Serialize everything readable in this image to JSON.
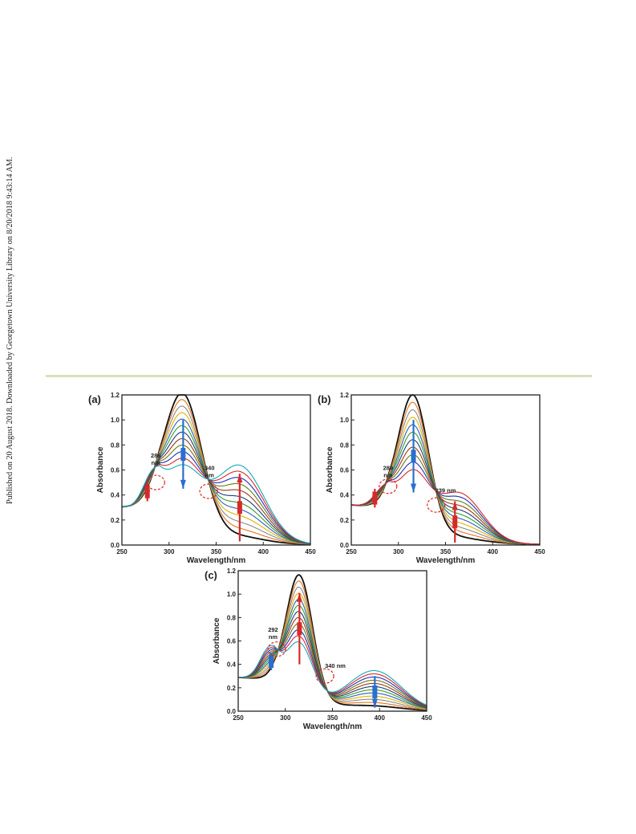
{
  "side_note": "Published on 20 August 2018. Downloaded by Georgetown University Library on 8/20/2018 9:43:14 AM.",
  "colors": {
    "palette": [
      "#111111",
      "#e8731a",
      "#8a8a8a",
      "#e3b100",
      "#2c5fb8",
      "#3a9a2c",
      "#1c3f7a",
      "#9b3a12",
      "#6a7a1a",
      "#1f2fb8",
      "#d62a2a",
      "#18a8b8",
      "#c41a9a",
      "#555555"
    ],
    "up_arrow": "#d62a2a",
    "down_arrow": "#2a6fcc",
    "isosbestic_circle": "#e02020"
  },
  "chart_data": [
    {
      "type": "line",
      "panel_label": "(a)",
      "xlabel": "Wavelength/nm",
      "ylabel": "Absorbance",
      "xlim": [
        250,
        450
      ],
      "ylim": [
        0.0,
        1.2
      ],
      "x_ticks": [
        "250",
        "300",
        "350",
        "400",
        "450"
      ],
      "y_ticks": [
        "0.0",
        "0.2",
        "0.4",
        "0.6",
        "0.8",
        "1.0",
        "1.2"
      ],
      "grid": false,
      "series_count": 12,
      "shape": {
        "base": 0.28,
        "tail_center": 290,
        "tail_width": 40,
        "peak1_center": 315,
        "peak1_width": 20,
        "peak1_max": 1.06,
        "peak1_min": 0.45,
        "peak2_center": 375,
        "peak2_width": 26,
        "peak2_min": 0.04,
        "peak2_max": 0.6,
        "shoulder_center": 282,
        "shoulder_width": 10,
        "shoulder_max": 0.2
      },
      "annotations": [
        {
          "lines": [
            "286",
            "nm"
          ],
          "x": 286,
          "y": 0.7,
          "circle_x": 286,
          "circle_y": 0.5
        },
        {
          "lines": [
            "340",
            "nm"
          ],
          "x": 343,
          "y": 0.6,
          "circle_x": 342,
          "circle_y": 0.43
        }
      ],
      "arrows": [
        {
          "x": 315,
          "from": 0.45,
          "to": 1.0,
          "direction": "down",
          "color": "down_arrow"
        },
        {
          "x": 375,
          "from": 0.03,
          "to": 0.57,
          "direction": "up",
          "color": "up_arrow"
        },
        {
          "x": 277,
          "from": 0.35,
          "to": 0.5,
          "direction": "up",
          "color": "up_arrow"
        }
      ]
    },
    {
      "type": "line",
      "panel_label": "(b)",
      "xlabel": "Wavelength/nm",
      "ylabel": "Absorbance",
      "xlim": [
        250,
        450
      ],
      "ylim": [
        0.0,
        1.2
      ],
      "x_ticks": [
        "250",
        "300",
        "350",
        "400",
        "450"
      ],
      "y_ticks": [
        "0.0",
        "0.2",
        "0.4",
        "0.6",
        "0.8",
        "1.0",
        "1.2"
      ],
      "grid": false,
      "series_count": 11,
      "shape": {
        "base": 0.3,
        "tail_center": 290,
        "tail_width": 40,
        "peak1_center": 316,
        "peak1_width": 16,
        "peak1_max": 1.04,
        "peak1_min": 0.4,
        "peak2_center": 365,
        "peak2_width": 24,
        "peak2_min": 0.02,
        "peak2_max": 0.37,
        "shoulder_center": 284,
        "shoulder_width": 10,
        "shoulder_max": 0.12
      },
      "annotations": [
        {
          "lines": [
            "289",
            "nm"
          ],
          "x": 289,
          "y": 0.6,
          "circle_x": 289,
          "circle_y": 0.47
        },
        {
          "lines": [
            "339 nm"
          ],
          "x": 350,
          "y": 0.42,
          "circle_x": 340,
          "circle_y": 0.32
        }
      ],
      "arrows": [
        {
          "x": 316,
          "from": 0.42,
          "to": 1.0,
          "direction": "down",
          "color": "down_arrow"
        },
        {
          "x": 360,
          "from": 0.02,
          "to": 0.35,
          "direction": "up",
          "color": "up_arrow"
        },
        {
          "x": 275,
          "from": 0.3,
          "to": 0.45,
          "direction": "up",
          "color": "up_arrow"
        }
      ]
    },
    {
      "type": "line",
      "panel_label": "(c)",
      "xlabel": "Wavelength/nm",
      "ylabel": "Absorbance",
      "xlim": [
        250,
        450
      ],
      "ylim": [
        0.0,
        1.2
      ],
      "x_ticks": [
        "250",
        "300",
        "350",
        "400",
        "450"
      ],
      "y_ticks": [
        "0.0",
        "0.2",
        "0.4",
        "0.6",
        "0.8",
        "1.0",
        "1.2"
      ],
      "grid": false,
      "series_count": 12,
      "shape": {
        "base": 0.27,
        "tail_center": 288,
        "tail_width": 38,
        "peak1_center": 315,
        "peak1_width": 14,
        "peak1_max": 1.03,
        "peak1_min": 0.45,
        "peak2_center": 395,
        "peak2_width": 28,
        "peak2_min": 0.03,
        "peak2_max": 0.33,
        "shoulder_center": 283,
        "shoulder_width": 10,
        "shoulder_max": 0.25
      },
      "annotations": [
        {
          "lines": [
            "292",
            "nm"
          ],
          "x": 287,
          "y": 0.68,
          "circle_x": 291,
          "circle_y": 0.53
        },
        {
          "lines": [
            "340 nm"
          ],
          "x": 353,
          "y": 0.37,
          "circle_x": 342,
          "circle_y": 0.3
        }
      ],
      "arrows": [
        {
          "x": 315,
          "from": 0.4,
          "to": 1.01,
          "direction": "up",
          "color": "up_arrow"
        },
        {
          "x": 395,
          "from": 0.03,
          "to": 0.3,
          "direction": "down",
          "color": "down_arrow"
        },
        {
          "x": 285,
          "from": 0.35,
          "to": 0.5,
          "direction": "down",
          "color": "down_arrow"
        }
      ]
    }
  ]
}
